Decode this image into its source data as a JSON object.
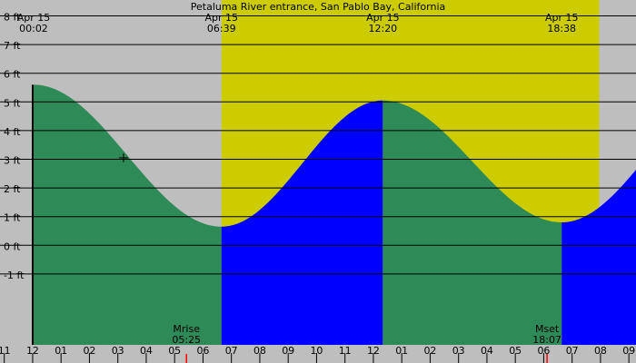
{
  "chart_data": {
    "type": "area",
    "title": "Petaluma River entrance, San Pablo Bay, California",
    "unit_suffix": " ft",
    "y_ticks": [
      -1,
      0,
      1,
      2,
      3,
      4,
      5,
      6,
      7,
      8
    ],
    "ylim": [
      -1.9,
      8.1
    ],
    "xlim_hours": [
      -1.15,
      21.25
    ],
    "x_tick_labels": [
      {
        "hour": -1,
        "label": "11"
      },
      {
        "hour": 0,
        "label": "12"
      },
      {
        "hour": 1,
        "label": "01"
      },
      {
        "hour": 2,
        "label": "02"
      },
      {
        "hour": 3,
        "label": "03"
      },
      {
        "hour": 4,
        "label": "04"
      },
      {
        "hour": 5,
        "label": "05"
      },
      {
        "hour": 6,
        "label": "06"
      },
      {
        "hour": 7,
        "label": "07"
      },
      {
        "hour": 8,
        "label": "08"
      },
      {
        "hour": 9,
        "label": "09"
      },
      {
        "hour": 10,
        "label": "10"
      },
      {
        "hour": 11,
        "label": "11"
      },
      {
        "hour": 12,
        "label": "12"
      },
      {
        "hour": 13,
        "label": "01"
      },
      {
        "hour": 14,
        "label": "02"
      },
      {
        "hour": 15,
        "label": "03"
      },
      {
        "hour": 16,
        "label": "04"
      },
      {
        "hour": 17,
        "label": "05"
      },
      {
        "hour": 18,
        "label": "06"
      },
      {
        "hour": 19,
        "label": "07"
      },
      {
        "hour": 20,
        "label": "08"
      },
      {
        "hour": 21,
        "label": "09"
      }
    ],
    "header_labels": [
      {
        "hour": 0.033,
        "date": "Apr 15",
        "time": "00:02"
      },
      {
        "hour": 6.65,
        "date": "Apr 15",
        "time": "06:39"
      },
      {
        "hour": 12.333,
        "date": "Apr 15",
        "time": "12:20"
      },
      {
        "hour": 18.633,
        "date": "Apr 15",
        "time": "18:38"
      }
    ],
    "extremes": [
      {
        "hour": 0.033,
        "height": 5.6
      },
      {
        "hour": 6.65,
        "height": 0.65
      },
      {
        "hour": 12.333,
        "height": 5.05
      },
      {
        "hour": 18.633,
        "height": 0.8
      },
      {
        "hour": 24.8,
        "height": 5.6
      }
    ],
    "daylight": {
      "start_hour": 6.65,
      "end_hour": 19.95
    },
    "moon_events": [
      {
        "label": "Mrise",
        "time": "05:25",
        "hour": 5.417
      },
      {
        "label": "Mset",
        "time": "18:07",
        "hour": 18.117
      }
    ],
    "marker_point": {
      "hour": 3.2,
      "height": 3.05
    },
    "colors": {
      "night": "#bebebe",
      "day": "#cccc00",
      "falling": "#2e8b57",
      "rising": "#0000ff",
      "grid": "#000000",
      "moon_tick": "#ff0000"
    }
  }
}
